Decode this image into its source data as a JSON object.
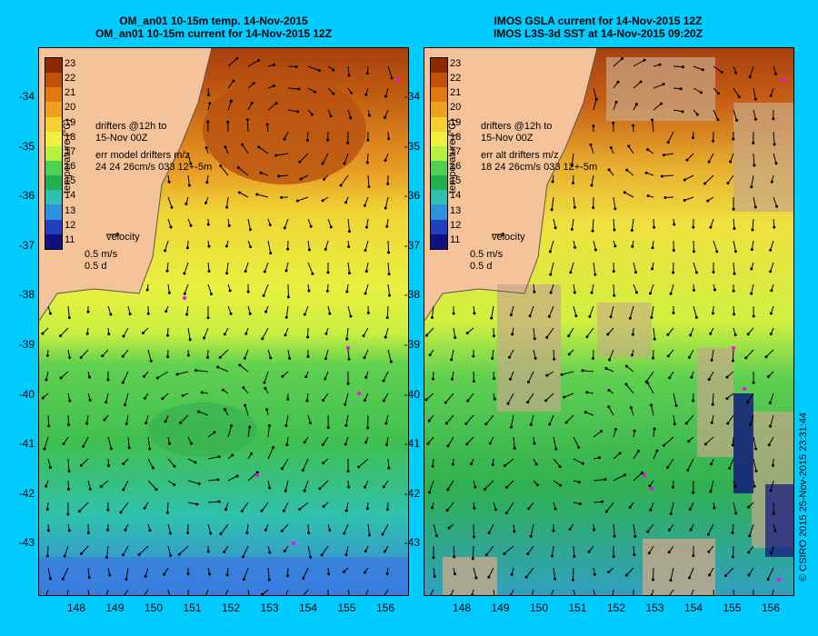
{
  "left_panel": {
    "title_line1": "OM_an01 10-15m temp. 14-Nov-2015",
    "title_line2": "OM_an01 10-15m current for 14-Nov-2015 12Z",
    "drifters_line1": "drifters @12h to",
    "drifters_line2": "15-Nov 00Z",
    "err_line1": "err model drifters m/z",
    "err_line2": "24 24 26cm/s 033 12+-5m",
    "velocity_label": "velocity",
    "velocity_scale": "0.5 m/s",
    "velocity_time": "0.5 d"
  },
  "right_panel": {
    "title_line1": "IMOS GSLA current for 14-Nov-2015 12Z",
    "title_line2": "IMOS L3S-3d SST at 14-Nov-2015 09:20Z",
    "drifters_line1": "drifters @12h to",
    "drifters_line2": "15-Nov 00Z",
    "err_line1": "err alt drifters m/z",
    "err_line2": "18 24 26cm/s 033 12+-5m",
    "velocity_label": "velocity",
    "velocity_scale": "0.5 m/s",
    "velocity_time": "0.5 d"
  },
  "colorbar": {
    "title": "temperature (°C)",
    "ticks": [
      "23",
      "22",
      "21",
      "20",
      "19",
      "18",
      "17",
      "16",
      "15",
      "14",
      "13",
      "12",
      "11"
    ],
    "colors": [
      "#8b2a00",
      "#c0500a",
      "#e07a10",
      "#f0a020",
      "#f5d030",
      "#f0f040",
      "#b8f040",
      "#50d050",
      "#20b050",
      "#30c0b0",
      "#3090e0",
      "#2040c0",
      "#101080"
    ]
  },
  "axes": {
    "lat_labels": [
      "-34",
      "-35",
      "-36",
      "-37",
      "-38",
      "-39",
      "-40",
      "-41",
      "-42",
      "-43"
    ],
    "lon_labels": [
      "148",
      "149",
      "150",
      "151",
      "152",
      "153",
      "154",
      "155",
      "156"
    ]
  },
  "copyright": "© CSIRO 2015  25-Nov-2015 23:31:44",
  "colors": {
    "background": "#00ccff",
    "land": "#f5c39a",
    "no_data": "#c8a888",
    "drifter": "#ff00ff"
  }
}
